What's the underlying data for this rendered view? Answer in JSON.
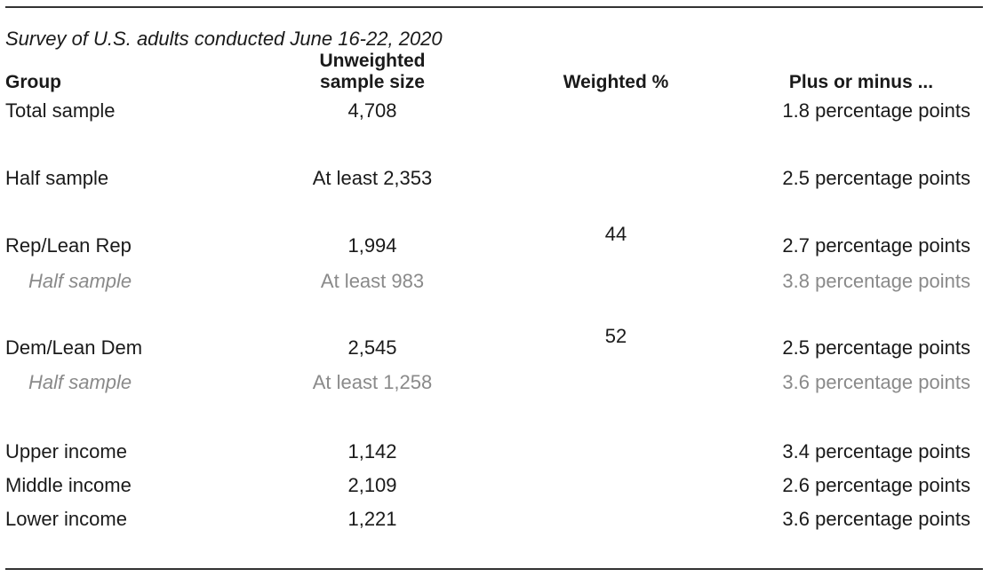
{
  "subtitle": "Survey of U.S. adults conducted June 16-22, 2020",
  "headers": {
    "group": "Group",
    "unweighted_line1": "Unweighted",
    "unweighted_line2": "sample size",
    "weighted": "Weighted %",
    "margin": "Plus or minus ..."
  },
  "rows": [
    {
      "group": "Total sample",
      "n": "4,708",
      "weighted": "",
      "margin": "1.8 percentage points"
    },
    {
      "group": "Half sample",
      "n": "At least 2,353",
      "weighted": "",
      "margin": "2.5 percentage points"
    },
    {
      "group": "Rep/Lean Rep",
      "n": "1,994",
      "weighted": "44",
      "margin": "2.7 percentage points"
    },
    {
      "group": "Half sample",
      "n": "At least 983",
      "weighted": "",
      "margin": "3.8 percentage points"
    },
    {
      "group": "Dem/Lean Dem",
      "n": "2,545",
      "weighted": "52",
      "margin": "2.5 percentage points"
    },
    {
      "group": "Half sample",
      "n": "At least 1,258",
      "weighted": "",
      "margin": "3.6 percentage points"
    },
    {
      "group": "Upper income",
      "n": "1,142",
      "weighted": "",
      "margin": "3.4 percentage points"
    },
    {
      "group": "Middle income",
      "n": "2,109",
      "weighted": "",
      "margin": "2.6 percentage points"
    },
    {
      "group": "Lower income",
      "n": "1,221",
      "weighted": "",
      "margin": "3.6 percentage points"
    }
  ],
  "colors": {
    "text": "#1a1a1a",
    "subrow_text": "#8a8a8a",
    "rule": "#333333"
  }
}
